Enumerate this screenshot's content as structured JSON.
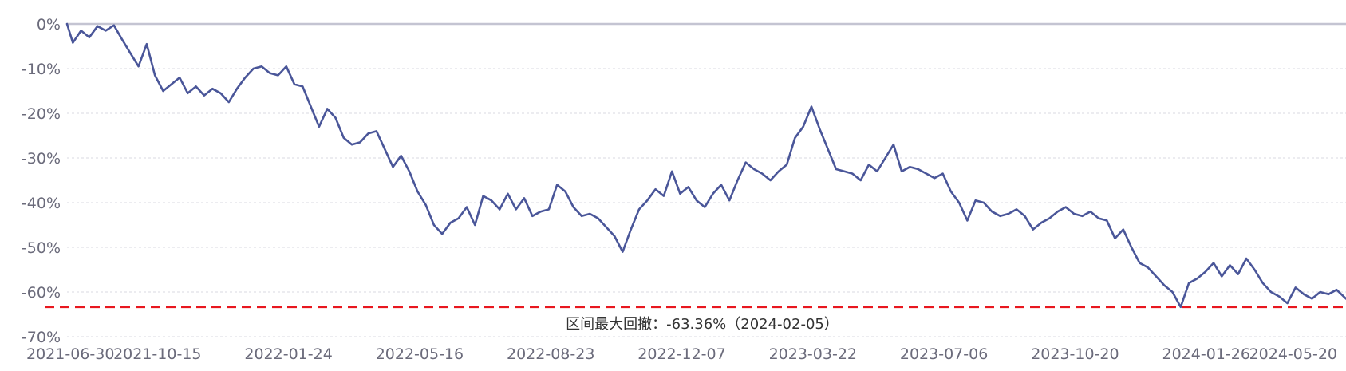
{
  "chart_data": {
    "type": "line",
    "title": "",
    "xlabel": "",
    "ylabel": "",
    "y_tick_labels": [
      "0%",
      "-10%",
      "-20%",
      "-30%",
      "-40%",
      "-50%",
      "-60%",
      "-70%"
    ],
    "y_tick_values": [
      0,
      -10,
      -20,
      -30,
      -40,
      -50,
      -60,
      -70
    ],
    "ylim": [
      -70,
      0
    ],
    "x_tick_labels": [
      "2021-06-30",
      "2021-10-15",
      "2022-01-24",
      "2022-05-16",
      "2022-08-23",
      "2022-12-07",
      "2023-03-22",
      "2023-07-06",
      "2023-10-20",
      "2024-01-26",
      "2024-05-20"
    ],
    "xlim": [
      "2021-06-30",
      "2024-06-25"
    ],
    "grid": "horizontal dashed",
    "line_color": "#4a5699",
    "max_drawdown_line": {
      "value": -63.36,
      "color": "#e8171f",
      "style": "dashed"
    },
    "annotation": "区间最大回撤：-63.36%（2024-02-05）",
    "series": [
      {
        "values": [
          [
            "2021-06-30",
            0
          ],
          [
            "2021-07-05",
            -4.2
          ],
          [
            "2021-07-12",
            -1.5
          ],
          [
            "2021-07-19",
            -3.0
          ],
          [
            "2021-07-26",
            -0.5
          ],
          [
            "2021-08-02",
            -1.5
          ],
          [
            "2021-08-09",
            -0.3
          ],
          [
            "2021-08-16",
            -3.5
          ],
          [
            "2021-08-23",
            -6.5
          ],
          [
            "2021-08-30",
            -9.5
          ],
          [
            "2021-09-06",
            -4.5
          ],
          [
            "2021-09-13",
            -11.5
          ],
          [
            "2021-09-20",
            -15.0
          ],
          [
            "2021-09-27",
            -13.5
          ],
          [
            "2021-10-04",
            -12.0
          ],
          [
            "2021-10-11",
            -15.5
          ],
          [
            "2021-10-18",
            -14.0
          ],
          [
            "2021-10-25",
            -16.0
          ],
          [
            "2021-11-01",
            -14.5
          ],
          [
            "2021-11-08",
            -15.5
          ],
          [
            "2021-11-15",
            -17.5
          ],
          [
            "2021-11-22",
            -14.5
          ],
          [
            "2021-11-29",
            -12.0
          ],
          [
            "2021-12-06",
            -10.0
          ],
          [
            "2021-12-13",
            -9.5
          ],
          [
            "2021-12-20",
            -11.0
          ],
          [
            "2021-12-27",
            -11.5
          ],
          [
            "2022-01-03",
            -9.5
          ],
          [
            "2022-01-10",
            -13.5
          ],
          [
            "2022-01-17",
            -14.0
          ],
          [
            "2022-01-24",
            -18.5
          ],
          [
            "2022-01-31",
            -23.0
          ],
          [
            "2022-02-07",
            -19.0
          ],
          [
            "2022-02-14",
            -21.0
          ],
          [
            "2022-02-21",
            -25.5
          ],
          [
            "2022-02-28",
            -27.0
          ],
          [
            "2022-03-07",
            -26.5
          ],
          [
            "2022-03-14",
            -24.5
          ],
          [
            "2022-03-21",
            -24.0
          ],
          [
            "2022-03-28",
            -28.0
          ],
          [
            "2022-04-04",
            -32.0
          ],
          [
            "2022-04-11",
            -29.5
          ],
          [
            "2022-04-18",
            -33.0
          ],
          [
            "2022-04-25",
            -37.5
          ],
          [
            "2022-05-02",
            -40.5
          ],
          [
            "2022-05-09",
            -45.0
          ],
          [
            "2022-05-16",
            -47.0
          ],
          [
            "2022-05-23",
            -44.5
          ],
          [
            "2022-05-30",
            -43.5
          ],
          [
            "2022-06-06",
            -41.0
          ],
          [
            "2022-06-13",
            -45.0
          ],
          [
            "2022-06-20",
            -38.5
          ],
          [
            "2022-06-27",
            -39.5
          ],
          [
            "2022-07-04",
            -41.5
          ],
          [
            "2022-07-11",
            -38.0
          ],
          [
            "2022-07-18",
            -41.5
          ],
          [
            "2022-07-25",
            -39.0
          ],
          [
            "2022-08-01",
            -43.0
          ],
          [
            "2022-08-08",
            -42.0
          ],
          [
            "2022-08-15",
            -41.5
          ],
          [
            "2022-08-22",
            -36.0
          ],
          [
            "2022-08-29",
            -37.5
          ],
          [
            "2022-09-05",
            -41.0
          ],
          [
            "2022-09-12",
            -43.0
          ],
          [
            "2022-09-19",
            -42.5
          ],
          [
            "2022-09-26",
            -43.5
          ],
          [
            "2022-10-03",
            -45.5
          ],
          [
            "2022-10-10",
            -47.5
          ],
          [
            "2022-10-17",
            -51.0
          ],
          [
            "2022-10-24",
            -46.0
          ],
          [
            "2022-10-31",
            -41.5
          ],
          [
            "2022-11-07",
            -39.5
          ],
          [
            "2022-11-14",
            -37.0
          ],
          [
            "2022-11-21",
            -38.5
          ],
          [
            "2022-11-28",
            -33.0
          ],
          [
            "2022-12-05",
            -38.0
          ],
          [
            "2022-12-12",
            -36.5
          ],
          [
            "2022-12-19",
            -39.5
          ],
          [
            "2022-12-26",
            -41.0
          ],
          [
            "2023-01-02",
            -38.0
          ],
          [
            "2023-01-09",
            -36.0
          ],
          [
            "2023-01-16",
            -39.5
          ],
          [
            "2023-01-23",
            -35.0
          ],
          [
            "2023-01-30",
            -31.0
          ],
          [
            "2023-02-06",
            -32.5
          ],
          [
            "2023-02-13",
            -33.5
          ],
          [
            "2023-02-20",
            -35.0
          ],
          [
            "2023-02-27",
            -33.0
          ],
          [
            "2023-03-06",
            -31.5
          ],
          [
            "2023-03-13",
            -25.5
          ],
          [
            "2023-03-20",
            -23.0
          ],
          [
            "2023-03-27",
            -18.5
          ],
          [
            "2023-04-03",
            -23.5
          ],
          [
            "2023-04-10",
            -28.0
          ],
          [
            "2023-04-17",
            -32.5
          ],
          [
            "2023-04-24",
            -33.0
          ],
          [
            "2023-05-01",
            -33.5
          ],
          [
            "2023-05-08",
            -35.0
          ],
          [
            "2023-05-15",
            -31.5
          ],
          [
            "2023-05-22",
            -33.0
          ],
          [
            "2023-05-29",
            -30.0
          ],
          [
            "2023-06-05",
            -27.0
          ],
          [
            "2023-06-12",
            -33.0
          ],
          [
            "2023-06-19",
            -32.0
          ],
          [
            "2023-06-26",
            -32.5
          ],
          [
            "2023-07-03",
            -33.5
          ],
          [
            "2023-07-10",
            -34.5
          ],
          [
            "2023-07-17",
            -33.5
          ],
          [
            "2023-07-24",
            -37.5
          ],
          [
            "2023-07-31",
            -40.0
          ],
          [
            "2023-08-07",
            -44.0
          ],
          [
            "2023-08-14",
            -39.5
          ],
          [
            "2023-08-21",
            -40.0
          ],
          [
            "2023-08-28",
            -42.0
          ],
          [
            "2023-09-04",
            -43.0
          ],
          [
            "2023-09-11",
            -42.5
          ],
          [
            "2023-09-18",
            -41.5
          ],
          [
            "2023-09-25",
            -43.0
          ],
          [
            "2023-10-02",
            -46.0
          ],
          [
            "2023-10-09",
            -44.5
          ],
          [
            "2023-10-16",
            -43.5
          ],
          [
            "2023-10-23",
            -42.0
          ],
          [
            "2023-10-30",
            -41.0
          ],
          [
            "2023-11-06",
            -42.5
          ],
          [
            "2023-11-13",
            -43.0
          ],
          [
            "2023-11-20",
            -42.0
          ],
          [
            "2023-11-27",
            -43.5
          ],
          [
            "2023-12-04",
            -44.0
          ],
          [
            "2023-12-11",
            -48.0
          ],
          [
            "2023-12-18",
            -46.0
          ],
          [
            "2023-12-25",
            -50.0
          ],
          [
            "2024-01-01",
            -53.5
          ],
          [
            "2024-01-08",
            -54.5
          ],
          [
            "2024-01-15",
            -56.5
          ],
          [
            "2024-01-22",
            -58.5
          ],
          [
            "2024-01-29",
            -60.0
          ],
          [
            "2024-02-05",
            -63.36
          ],
          [
            "2024-02-12",
            -58.0
          ],
          [
            "2024-02-19",
            -57.0
          ],
          [
            "2024-02-26",
            -55.5
          ],
          [
            "2024-03-04",
            -53.5
          ],
          [
            "2024-03-11",
            -56.5
          ],
          [
            "2024-03-18",
            -54.0
          ],
          [
            "2024-03-25",
            -56.0
          ],
          [
            "2024-04-01",
            -52.5
          ],
          [
            "2024-04-08",
            -55.0
          ],
          [
            "2024-04-15",
            -58.0
          ],
          [
            "2024-04-22",
            -60.0
          ],
          [
            "2024-04-29",
            -61.0
          ],
          [
            "2024-05-06",
            -62.5
          ],
          [
            "2024-05-13",
            -59.0
          ],
          [
            "2024-05-20",
            -60.5
          ],
          [
            "2024-05-27",
            -61.5
          ],
          [
            "2024-06-03",
            -60.0
          ],
          [
            "2024-06-10",
            -60.5
          ],
          [
            "2024-06-17",
            -59.5
          ],
          [
            "2024-06-25",
            -61.5
          ]
        ]
      }
    ]
  }
}
